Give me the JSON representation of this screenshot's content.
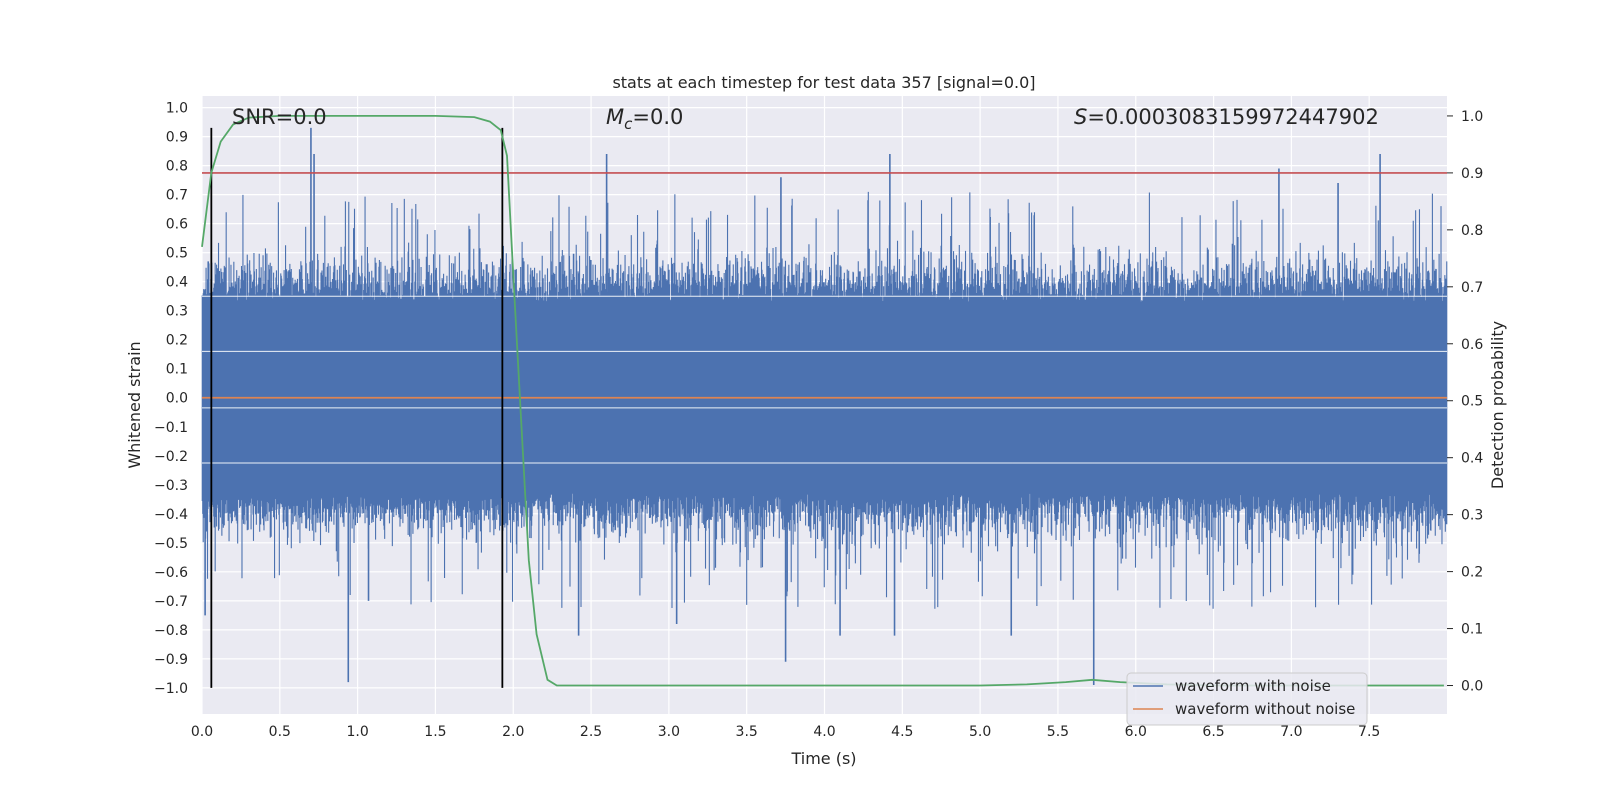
{
  "chart_data": {
    "type": "line",
    "title": "stats at each timestep for test data 357 [signal=0.0]",
    "xlabel": "Time (s)",
    "ylabel": "Whitened strain",
    "y2label": "Detection probability",
    "xlim": [
      0.0,
      8.0
    ],
    "ylim": [
      -1.09,
      1.04
    ],
    "y2lim": [
      -0.05,
      1.035
    ],
    "grid": true,
    "xticks": [
      "0.0",
      "0.5",
      "1.0",
      "1.5",
      "2.0",
      "2.5",
      "3.0",
      "3.5",
      "4.0",
      "4.5",
      "5.0",
      "5.5",
      "6.0",
      "6.5",
      "7.0",
      "7.5"
    ],
    "yticks": [
      "1.0",
      "0.9",
      "0.8",
      "0.7",
      "0.6",
      "0.5",
      "0.4",
      "0.3",
      "0.2",
      "0.1",
      "0.0",
      "−0.1",
      "−0.2",
      "−0.3",
      "−0.4",
      "−0.5",
      "−0.6",
      "−0.7",
      "−0.8",
      "−0.9",
      "−1.0"
    ],
    "y2ticks": [
      "1.0",
      "0.9",
      "0.8",
      "0.7",
      "0.6",
      "0.5",
      "0.4",
      "0.3",
      "0.2",
      "0.1",
      "0.0"
    ],
    "annotations": {
      "snr": "SNR=0.0",
      "mc_symbol": "M",
      "mc_sub": "c",
      "mc_value": "=0.0",
      "s_symbol": "S",
      "s_value": "=0.0003083159972447902"
    },
    "vertical_lines": [
      0.06,
      1.93
    ],
    "threshold": 0.9,
    "noise_envelope": {
      "name": "waveform with noise",
      "color": "#4c72b0",
      "seed": 357,
      "base_amplitude": 0.33,
      "spikes": [
        {
          "x": 0.02,
          "y": -0.75
        },
        {
          "x": 0.04,
          "y": 0.47
        },
        {
          "x": 0.7,
          "y": 0.93
        },
        {
          "x": 0.72,
          "y": 0.84
        },
        {
          "x": 0.94,
          "y": -0.98
        },
        {
          "x": 1.07,
          "y": -0.7
        },
        {
          "x": 2.42,
          "y": -0.82
        },
        {
          "x": 2.6,
          "y": 0.84
        },
        {
          "x": 3.05,
          "y": -0.78
        },
        {
          "x": 3.72,
          "y": 0.76
        },
        {
          "x": 3.75,
          "y": -0.91
        },
        {
          "x": 4.1,
          "y": -0.82
        },
        {
          "x": 4.42,
          "y": 0.84
        },
        {
          "x": 4.45,
          "y": -0.82
        },
        {
          "x": 5.2,
          "y": -0.82
        },
        {
          "x": 5.73,
          "y": -0.99
        },
        {
          "x": 6.92,
          "y": 0.79
        },
        {
          "x": 7.3,
          "y": 0.74
        },
        {
          "x": 7.57,
          "y": 0.84
        }
      ]
    },
    "clean_waveform": {
      "name": "waveform without noise",
      "color": "#dd8452",
      "value": 0.0
    },
    "detection_probability": {
      "color": "#55a868",
      "x": [
        0.0,
        0.06,
        0.12,
        0.2,
        0.3,
        0.5,
        1.0,
        1.5,
        1.75,
        1.85,
        1.92,
        1.96,
        2.0,
        2.05,
        2.1,
        2.15,
        2.22,
        2.28,
        3.0,
        4.0,
        5.0,
        5.3,
        5.55,
        5.72,
        5.9,
        6.2,
        6.5,
        7.0,
        7.5,
        7.98
      ],
      "y": [
        0.77,
        0.9,
        0.955,
        0.985,
        0.997,
        1.0,
        1.0,
        1.0,
        0.998,
        0.99,
        0.975,
        0.93,
        0.72,
        0.47,
        0.22,
        0.09,
        0.01,
        0.0,
        0.0,
        0.0,
        0.0,
        0.002,
        0.006,
        0.01,
        0.006,
        0.002,
        0.0,
        0.0,
        0.0,
        0.0
      ]
    },
    "threshold_color": "#c44e52",
    "legend": {
      "position": "lower-right",
      "entries": [
        "waveform with noise",
        "waveform without noise"
      ]
    }
  }
}
